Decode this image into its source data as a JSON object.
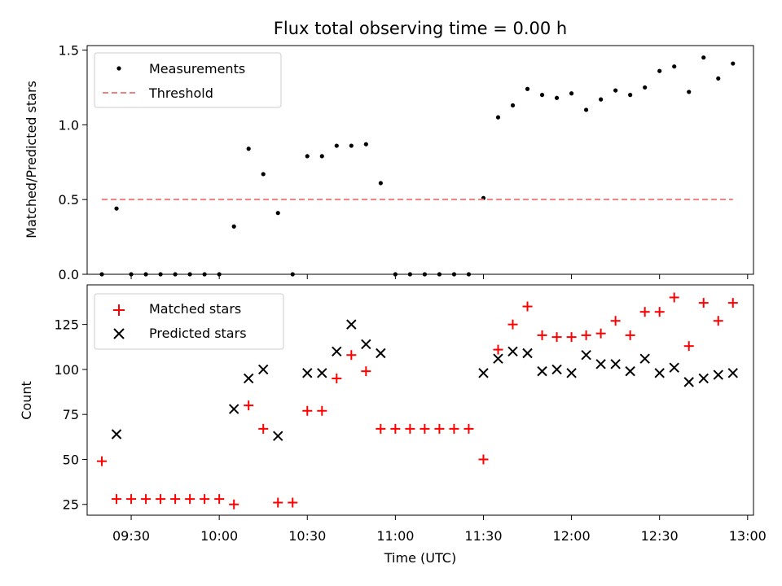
{
  "chart_data": [
    {
      "type": "scatter",
      "title": "Flux total observing time = 0.00 h",
      "xlabel": "",
      "ylabel": "Matched/Predicted stars",
      "ylim": [
        0,
        1.53
      ],
      "xlim": [
        "09:15",
        "13:02"
      ],
      "yticks": [
        "0.0",
        "0.5",
        "1.0",
        "1.5"
      ],
      "legend": "top-left",
      "series": [
        {
          "name": "Measurements",
          "marker": "dot",
          "color": "#000000",
          "x": [
            "09:20",
            "09:25",
            "09:30",
            "09:35",
            "09:40",
            "09:45",
            "09:50",
            "09:55",
            "10:00",
            "10:05",
            "10:10",
            "10:15",
            "10:20",
            "10:25",
            "10:30",
            "10:35",
            "10:40",
            "10:45",
            "10:50",
            "10:55",
            "11:00",
            "11:05",
            "11:10",
            "11:15",
            "11:20",
            "11:25",
            "11:30",
            "11:35",
            "11:40",
            "11:45",
            "11:50",
            "11:55",
            "12:00",
            "12:05",
            "12:10",
            "12:15",
            "12:20",
            "12:25",
            "12:30",
            "12:35",
            "12:40",
            "12:45",
            "12:50",
            "12:55"
          ],
          "y": [
            0.0,
            0.44,
            0.0,
            0.0,
            0.0,
            0.0,
            0.0,
            0.0,
            0.0,
            0.32,
            0.84,
            0.67,
            0.41,
            0.0,
            0.79,
            0.79,
            0.86,
            0.86,
            0.87,
            0.61,
            0.0,
            0.0,
            0.0,
            0.0,
            0.0,
            0.0,
            0.51,
            1.05,
            1.13,
            1.24,
            1.2,
            1.18,
            1.21,
            1.1,
            1.17,
            1.23,
            1.2,
            1.25,
            1.36,
            1.39,
            1.22,
            1.45,
            1.31,
            1.41
          ]
        },
        {
          "name": "Threshold",
          "marker": "dashed-line",
          "color": "#f08080",
          "x": [
            "09:20",
            "12:55"
          ],
          "y": [
            0.5,
            0.5
          ]
        }
      ]
    },
    {
      "type": "scatter",
      "title": "",
      "xlabel": "Time (UTC)",
      "ylabel": "Count",
      "ylim": [
        19,
        147
      ],
      "xlim": [
        "09:15",
        "13:02"
      ],
      "yticks": [
        "25",
        "50",
        "75",
        "100",
        "125"
      ],
      "xticks": [
        "09:30",
        "10:00",
        "10:30",
        "11:00",
        "11:30",
        "12:00",
        "12:30",
        "13:00"
      ],
      "legend": "top-left",
      "series": [
        {
          "name": "Matched stars",
          "marker": "plus",
          "color": "#ff0000",
          "x": [
            "09:20",
            "09:25",
            "09:30",
            "09:35",
            "09:40",
            "09:45",
            "09:50",
            "09:55",
            "10:00",
            "10:05",
            "10:10",
            "10:15",
            "10:20",
            "10:25",
            "10:30",
            "10:35",
            "10:40",
            "10:45",
            "10:50",
            "10:55",
            "11:00",
            "11:05",
            "11:10",
            "11:15",
            "11:20",
            "11:25",
            "11:30",
            "11:35",
            "11:40",
            "11:45",
            "11:50",
            "11:55",
            "12:00",
            "12:05",
            "12:10",
            "12:15",
            "12:20",
            "12:25",
            "12:30",
            "12:35",
            "12:40",
            "12:45",
            "12:50",
            "12:55"
          ],
          "y": [
            49,
            28,
            28,
            28,
            28,
            28,
            28,
            28,
            28,
            25,
            80,
            67,
            26,
            26,
            77,
            77,
            95,
            108,
            99,
            67,
            67,
            67,
            67,
            67,
            67,
            67,
            50,
            111,
            125,
            135,
            119,
            118,
            118,
            119,
            120,
            127,
            119,
            132,
            132,
            140,
            113,
            137,
            127,
            137
          ]
        },
        {
          "name": "Predicted stars",
          "marker": "x",
          "color": "#000000",
          "x": [
            "09:25",
            "10:05",
            "10:10",
            "10:15",
            "10:20",
            "10:30",
            "10:35",
            "10:40",
            "10:45",
            "10:50",
            "10:55",
            "11:30",
            "11:35",
            "11:40",
            "11:45",
            "11:50",
            "11:55",
            "12:00",
            "12:05",
            "12:10",
            "12:15",
            "12:20",
            "12:25",
            "12:30",
            "12:35",
            "12:40",
            "12:45",
            "12:50",
            "12:55"
          ],
          "y": [
            64,
            78,
            95,
            100,
            63,
            98,
            98,
            110,
            125,
            114,
            109,
            98,
            106,
            110,
            109,
            99,
            100,
            98,
            108,
            103,
            103,
            99,
            106,
            98,
            101,
            93,
            95,
            97,
            98
          ]
        }
      ]
    }
  ]
}
